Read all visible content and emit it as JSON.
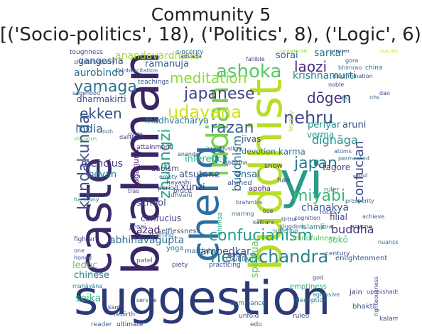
{
  "title": {
    "line1": "Community 5",
    "line2": "[('Socio-politics', 18), ('Politics', 8), ('Logic', 6)]"
  },
  "words": [
    {
      "text": "suggestion",
      "color": "#2b3a77",
      "rot": 0
    },
    {
      "text": "caste",
      "color": "#3d2a6b",
      "rot": -90
    },
    {
      "text": "brahman",
      "color": "#3a2566",
      "rot": -90
    },
    {
      "text": "cheng",
      "color": "#2c6fa0",
      "rot": -90
    },
    {
      "text": "buddhist",
      "color": "#b8de29",
      "rot": -90
    },
    {
      "text": "yi",
      "color": "#2a9a8a",
      "rot": 0
    },
    {
      "text": "indian",
      "color": "#7ad151",
      "rot": -90
    },
    {
      "text": "hemachandra",
      "color": "#26828e",
      "rot": 0
    },
    {
      "text": "confucianism",
      "color": "#1f9e89",
      "rot": 0
    },
    {
      "text": "kundakunda",
      "color": "#3b528b",
      "rot": -90
    },
    {
      "text": "ashoka",
      "color": "#58c765",
      "rot": 0
    },
    {
      "text": "japanese",
      "color": "#414487",
      "rot": 0
    },
    {
      "text": "yamaga",
      "color": "#2c728e",
      "rot": 0
    },
    {
      "text": "udayana",
      "color": "#d2e21b",
      "rot": 0
    },
    {
      "text": "razan",
      "color": "#355f8d",
      "rot": 0
    },
    {
      "text": "nehru",
      "color": "#404688",
      "rot": 0
    },
    {
      "text": "japan",
      "color": "#2a788e",
      "rot": 0
    },
    {
      "text": "miyabi",
      "color": "#35b779",
      "rot": 0
    },
    {
      "text": "ekken",
      "color": "#3b528b",
      "rot": 0
    },
    {
      "text": "dōgen",
      "color": "#46327e",
      "rot": 0
    },
    {
      "text": "laozi",
      "color": "#472d7b",
      "rot": 0
    },
    {
      "text": "meditation",
      "color": "#8fd744",
      "rot": 0
    },
    {
      "text": "zhuangzi",
      "color": "#22a884",
      "rot": -90
    },
    {
      "text": "buddhism",
      "color": "#2c728e",
      "rot": -90
    },
    {
      "text": "confucian",
      "color": "#3e4a89",
      "rot": -90
    },
    {
      "text": "buddha",
      "color": "#46337e",
      "rot": 0
    },
    {
      "text": "india",
      "color": "#31688e",
      "rot": 0
    },
    {
      "text": "spiritual",
      "color": "#5ec962",
      "rot": -90
    },
    {
      "text": "dignāga",
      "color": "#21918c",
      "rot": 0
    },
    {
      "text": "chanakya",
      "color": "#375a8c",
      "rot": 0
    },
    {
      "text": "anandavardhana",
      "color": "#a0da39",
      "rot": 0
    },
    {
      "text": "krishnamurti",
      "color": "#25858e",
      "rot": 0
    },
    {
      "text": "aurobindo",
      "color": "#2d708e",
      "rot": 0
    },
    {
      "text": "ramanuja",
      "color": "#38598c",
      "rot": 0
    },
    {
      "text": "gangesha",
      "color": "#3f4889",
      "rot": 0
    },
    {
      "text": "sarkar",
      "color": "#2a788e",
      "rot": 0
    },
    {
      "text": "abhinavagupta",
      "color": "#2e6e8e",
      "rot": 0
    },
    {
      "text": "ambedkar",
      "color": "#3a548c",
      "rot": 0
    },
    {
      "text": "mencius",
      "color": "#443983",
      "rot": 0
    },
    {
      "text": "periyar",
      "color": "#1f958b",
      "rot": 0
    },
    {
      "text": "inference",
      "color": "#29af7f",
      "rot": 0
    },
    {
      "text": "dharmakirti",
      "color": "#3d4e8a",
      "rot": 0
    },
    {
      "text": "madhvacharya",
      "color": "#2b748e",
      "rot": 0
    },
    {
      "text": "atsutane",
      "color": "#3c4f8a",
      "rot": 0
    },
    {
      "text": "ansai",
      "color": "#2f6b8e",
      "rot": 0
    },
    {
      "text": "sorai",
      "color": "#34618d",
      "rot": 0
    },
    {
      "text": "verma",
      "color": "#1e9c89",
      "rot": 0
    },
    {
      "text": "aruni",
      "color": "#3e4989",
      "rot": 0
    },
    {
      "text": "karma",
      "color": "#2f6c8e",
      "rot": 0
    },
    {
      "text": "tagore",
      "color": "#404588",
      "rot": 0
    },
    {
      "text": "bevan",
      "color": "#26818e",
      "rot": 0
    },
    {
      "text": "xunzi",
      "color": "#453781",
      "rot": 0
    },
    {
      "text": "school",
      "color": "#3b518b",
      "rot": 0
    },
    {
      "text": "confucius",
      "color": "#433e85",
      "rot": 0
    },
    {
      "text": "azad",
      "color": "#481769",
      "rot": 0
    },
    {
      "text": "leduc",
      "color": "#63cb5f",
      "rot": 0
    },
    {
      "text": "chinese",
      "color": "#2a778e",
      "rot": 0
    },
    {
      "text": "seika",
      "color": "#35b779",
      "rot": 0
    },
    {
      "text": "sokō",
      "color": "#4ac16d",
      "rot": 0
    },
    {
      "text": "nāgārjuna",
      "color": "#48186a",
      "rot": -90
    },
    {
      "text": "filial",
      "color": "#3f4788",
      "rot": 0
    },
    {
      "text": "jivas",
      "color": "#3b528b",
      "rot": 0
    },
    {
      "text": "devotion",
      "color": "#2e6d8e",
      "rot": 0
    },
    {
      "text": "daoism",
      "color": "#472c7a",
      "rot": 0
    },
    {
      "text": "jain",
      "color": "#46307e",
      "rot": 0
    },
    {
      "text": "bhakti",
      "color": "#3a538b",
      "rot": 0
    },
    {
      "text": "selflessness",
      "color": "#39568c",
      "rot": 0
    },
    {
      "text": "enlightenment",
      "color": "#3b518b",
      "rot": 0
    },
    {
      "text": "mindfulness",
      "color": "#5ec962",
      "rot": 0
    },
    {
      "text": "emptiness",
      "color": "#31b57b",
      "rot": 0
    },
    {
      "text": "yoga",
      "color": "#2a788e",
      "rot": 0
    },
    {
      "text": "martial",
      "color": "#34608d",
      "rot": 0
    },
    {
      "text": "fei",
      "color": "#26828e",
      "rot": 0
    },
    {
      "text": "snow",
      "color": "#433d84",
      "rot": 0
    },
    {
      "text": "hao",
      "color": "#3e4989",
      "rot": 0
    },
    {
      "text": "apoha",
      "color": "#482273",
      "rot": 0
    },
    {
      "text": "ahmed",
      "color": "#39568c",
      "rot": 0
    },
    {
      "text": "universe",
      "color": "#8fd744",
      "rot": 0
    },
    {
      "text": "moral",
      "color": "#3f4788",
      "rot": 0
    },
    {
      "text": "society",
      "color": "#cde11d",
      "rot": 0
    },
    {
      "text": "toughness",
      "color": "#414487",
      "rot": 0
    },
    {
      "text": "teachings",
      "color": "#3b528b",
      "rot": 0
    },
    {
      "text": "sincerity",
      "color": "#2d708e",
      "rot": 0
    },
    {
      "text": "china",
      "color": "#2a788e",
      "rot": 0
    },
    {
      "text": "attainment",
      "color": "#482475",
      "rot": 0
    },
    {
      "text": "rulers",
      "color": "#404588",
      "rot": 0
    },
    {
      "text": "country",
      "color": "#31688e",
      "rot": 0
    },
    {
      "text": "jinsai",
      "color": "#3b528b",
      "rot": 0
    },
    {
      "text": "ahimsa",
      "color": "#20a386",
      "rot": -90
    },
    {
      "text": "fighter",
      "color": "#433e85",
      "rot": 0
    },
    {
      "text": "training",
      "color": "#2c728e",
      "rot": 0
    },
    {
      "text": "hayashi",
      "color": "#3e4a89",
      "rot": 0
    },
    {
      "text": "dhvani",
      "color": "#2f6b8e",
      "rot": 0
    },
    {
      "text": "bruce",
      "color": "#3a548c",
      "rot": 0
    },
    {
      "text": "period",
      "color": "#404688",
      "rot": 0
    },
    {
      "text": "loyalty",
      "color": "#bade28",
      "rot": -90
    },
    {
      "text": "islamic",
      "color": "#2a788e",
      "rot": 0
    },
    {
      "text": "jiva",
      "color": "#21918c",
      "rot": 0
    },
    {
      "text": "century",
      "color": "#3b528b",
      "rot": 0
    },
    {
      "text": "rocks",
      "color": "#3f4889",
      "rot": 0
    },
    {
      "text": "ruler",
      "color": "#2e6f8e",
      "rot": 0
    },
    {
      "text": "patel",
      "color": "#33638d",
      "rot": 0
    },
    {
      "text": "piety",
      "color": "#414487",
      "rot": 0
    },
    {
      "text": "practicing",
      "color": "#3e4c8a",
      "rot": 0
    },
    {
      "text": "unfold",
      "color": "#3b518b",
      "rot": 0
    },
    {
      "text": "edo",
      "color": "#38598c",
      "rot": 0
    },
    {
      "text": "dominance",
      "color": "#2c738e",
      "rot": 0
    },
    {
      "text": "ultimate",
      "color": "#443a83",
      "rot": 0
    },
    {
      "text": "rebirth",
      "color": "#3f4889",
      "rot": 0
    },
    {
      "text": "reader",
      "color": "#355f8d",
      "rot": 0
    },
    {
      "text": "deception",
      "color": "#2a788e",
      "rot": 0
    },
    {
      "text": "ruled",
      "color": "#404588",
      "rot": 0
    },
    {
      "text": "kalam",
      "color": "#3b528b",
      "rot": 0
    },
    {
      "text": "advaita",
      "color": "#3e4a89",
      "rot": 0
    },
    {
      "text": "shcherbatskoy",
      "color": "#2d708e",
      "rot": 0
    },
    {
      "text": "fallible",
      "color": "#414487",
      "rot": 0
    },
    {
      "text": "gora",
      "color": "#3b528b",
      "rot": 0
    },
    {
      "text": "bhimrao",
      "color": "#2a788e",
      "rot": 0
    },
    {
      "text": "discrimination",
      "color": "#3f4788",
      "rot": 0
    },
    {
      "text": "noble",
      "color": "#3e4989",
      "rot": 0
    },
    {
      "text": "atoms",
      "color": "#31688e",
      "rot": 0
    },
    {
      "text": "permeated",
      "color": "#2e6e8e",
      "rot": 0
    },
    {
      "text": "abul",
      "color": "#404588",
      "rot": 0
    },
    {
      "text": "virtuous",
      "color": "#7ad151",
      "rot": 0
    },
    {
      "text": "harmony",
      "color": "#2c728e",
      "rot": 0
    },
    {
      "text": "ananda",
      "color": "#3b528b",
      "rot": 0
    },
    {
      "text": "muslims",
      "color": "#414487",
      "rot": 0
    },
    {
      "text": "israel",
      "color": "#2f6b8e",
      "rot": 0
    },
    {
      "text": "abhidha",
      "color": "#3a548c",
      "rot": 0
    },
    {
      "text": "tirtha",
      "color": "#3e4c8a",
      "rot": 0
    },
    {
      "text": "kingdom",
      "color": "#3b518b",
      "rot": 0
    },
    {
      "text": "kaibara",
      "color": "#404688",
      "rot": 0
    },
    {
      "text": "suffering",
      "color": "#2a788e",
      "rot": 0
    },
    {
      "text": "cognition",
      "color": "#3f4889",
      "rot": 0
    },
    {
      "text": "achieve",
      "color": "#355f8d",
      "rot": 0
    },
    {
      "text": "anyone",
      "color": "#443983",
      "rot": 0
    },
    {
      "text": "prosperity",
      "color": "#2c738e",
      "rot": 0
    },
    {
      "text": "bce",
      "color": "#3b528b",
      "rot": 0
    },
    {
      "text": "empty",
      "color": "#34608d",
      "rot": 0
    },
    {
      "text": "trao",
      "color": "#3e4a89",
      "rot": 0
    },
    {
      "text": "marring",
      "color": "#2e6d8e",
      "rot": 0
    },
    {
      "text": "kami",
      "color": "#404588",
      "rot": 0
    },
    {
      "text": "honed",
      "color": "#3b528b",
      "rot": 0
    },
    {
      "text": "one",
      "color": "#31688e",
      "rot": 0
    },
    {
      "text": "service",
      "color": "#3f4788",
      "rot": 0
    },
    {
      "text": "agressive",
      "color": "#2a788e",
      "rot": 0
    },
    {
      "text": "upanishads",
      "color": "#3e4989",
      "rot": 0
    },
    {
      "text": "righteousness",
      "color": "#414487",
      "rot": -90
    },
    {
      "text": "nuances",
      "color": "#2d708e",
      "rot": 0
    },
    {
      "text": "brahmins",
      "color": "#3b528b",
      "rot": 0
    },
    {
      "text": "noh",
      "color": "#2c728e",
      "rot": 0
    },
    {
      "text": "dalits",
      "color": "#404688",
      "rot": 0
    },
    {
      "text": "shinto",
      "color": "#3a548c",
      "rot": 0
    },
    {
      "text": "recitation",
      "color": "#2f6b8e",
      "rot": 0
    },
    {
      "text": "sagehood",
      "color": "#3e4c8a",
      "rot": 0
    },
    {
      "text": "cycle",
      "color": "#3b518b",
      "rot": 0
    },
    {
      "text": "dao",
      "color": "#3f4889",
      "rot": 0
    },
    {
      "text": "nhs",
      "color": "#355f8d",
      "rot": 0
    },
    {
      "text": "god",
      "color": "#443a83",
      "rot": 0
    },
    {
      "text": "mahāyāna",
      "color": "#2a788e",
      "rot": 0
    }
  ]
}
